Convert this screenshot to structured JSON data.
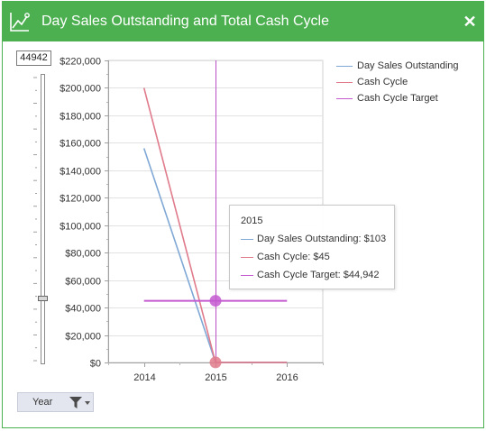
{
  "window": {
    "title": "Day Sales Outstanding and Total Cash Cycle",
    "close_label": "✕",
    "accent_color": "#4caf50"
  },
  "slider": {
    "value": "44942",
    "min": 0,
    "max": 220000,
    "current": 44942
  },
  "chart_data": {
    "type": "line",
    "categories": [
      "2014",
      "2015",
      "2016"
    ],
    "x": [
      2014,
      2015,
      2016
    ],
    "xlim": [
      2013.5,
      2016.5
    ],
    "ylim": [
      0,
      220000
    ],
    "yticks": [
      0,
      20000,
      40000,
      60000,
      80000,
      100000,
      120000,
      140000,
      160000,
      180000,
      200000,
      220000
    ],
    "ytick_labels": [
      "$0",
      "$20,000",
      "$40,000",
      "$60,000",
      "$80,000",
      "$100,000",
      "$120,000",
      "$140,000",
      "$160,000",
      "$180,000",
      "$200,000",
      "$220,000"
    ],
    "grid": true,
    "legend_position": "top-right",
    "series": [
      {
        "name": "Day Sales Outstanding",
        "color": "#7fa8d6",
        "values": [
          156000,
          103,
          103
        ]
      },
      {
        "name": "Cash Cycle",
        "color": "#e07b8c",
        "values": [
          200000,
          45,
          45
        ]
      },
      {
        "name": "Cash Cycle Target",
        "color": "#c45bd0",
        "values": [
          44942,
          44942,
          44942
        ]
      }
    ],
    "highlight_x": 2015
  },
  "tooltip": {
    "title": "2015",
    "rows": [
      {
        "label": "Day Sales Outstanding: $103",
        "color": "#7fa8d6"
      },
      {
        "label": "Cash Cycle: $45",
        "color": "#e07b8c"
      },
      {
        "label": "Cash Cycle Target: $44,942",
        "color": "#c45bd0"
      }
    ]
  },
  "filter": {
    "label": "Year",
    "icon": "filter-icon"
  }
}
